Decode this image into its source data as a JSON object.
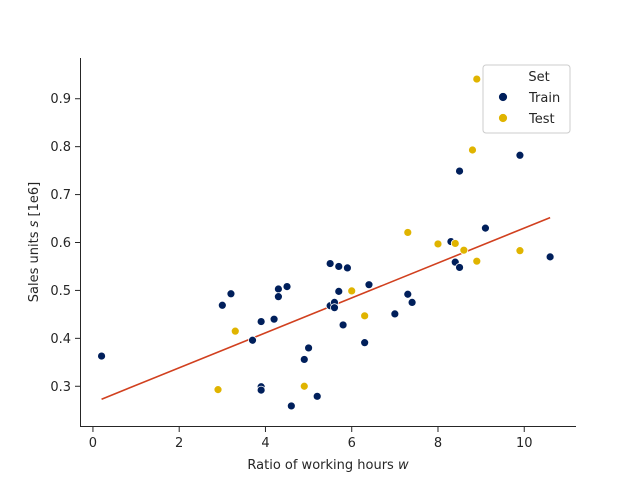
{
  "chart_data": {
    "type": "scatter",
    "title": "",
    "xlabel": "Ratio of working hours",
    "xlabel_var": "w",
    "ylabel": "Sales units",
    "ylabel_var": "s",
    "ylabel_suffix": "[1e6]",
    "xlim": [
      -0.3,
      11.2
    ],
    "ylim": [
      0.215,
      0.985
    ],
    "xticks": [
      0,
      2,
      4,
      6,
      8,
      10
    ],
    "yticks": [
      0.3,
      0.4,
      0.5,
      0.6,
      0.7,
      0.8,
      0.9
    ],
    "ytick_labels": [
      "0.3",
      "0.4",
      "0.5",
      "0.6",
      "0.7",
      "0.8",
      "0.9"
    ],
    "grid": false,
    "legend": {
      "title": "Set",
      "placement": "top-right",
      "entries": [
        "Train",
        "Test"
      ]
    },
    "series": [
      {
        "name": "Train",
        "color": "#001f5b",
        "points": [
          [
            0.2,
            0.363
          ],
          [
            3.0,
            0.469
          ],
          [
            3.2,
            0.493
          ],
          [
            3.7,
            0.396
          ],
          [
            3.9,
            0.435
          ],
          [
            3.9,
            0.299
          ],
          [
            3.9,
            0.292
          ],
          [
            4.2,
            0.44
          ],
          [
            4.3,
            0.503
          ],
          [
            4.3,
            0.487
          ],
          [
            4.5,
            0.508
          ],
          [
            4.6,
            0.259
          ],
          [
            4.9,
            0.356
          ],
          [
            5.0,
            0.38
          ],
          [
            5.2,
            0.279
          ],
          [
            5.5,
            0.556
          ],
          [
            5.5,
            0.468
          ],
          [
            5.6,
            0.475
          ],
          [
            5.6,
            0.464
          ],
          [
            5.7,
            0.55
          ],
          [
            5.7,
            0.498
          ],
          [
            5.8,
            0.428
          ],
          [
            5.9,
            0.547
          ],
          [
            6.3,
            0.391
          ],
          [
            6.4,
            0.512
          ],
          [
            7.0,
            0.451
          ],
          [
            7.3,
            0.492
          ],
          [
            7.4,
            0.475
          ],
          [
            8.3,
            0.602
          ],
          [
            8.4,
            0.559
          ],
          [
            8.5,
            0.548
          ],
          [
            8.5,
            0.749
          ],
          [
            9.1,
            0.63
          ],
          [
            9.9,
            0.782
          ],
          [
            10.6,
            0.57
          ]
        ]
      },
      {
        "name": "Test",
        "color": "#e0b400",
        "points": [
          [
            2.9,
            0.293
          ],
          [
            3.3,
            0.415
          ],
          [
            4.9,
            0.3
          ],
          [
            6.0,
            0.499
          ],
          [
            6.3,
            0.447
          ],
          [
            7.3,
            0.621
          ],
          [
            8.0,
            0.597
          ],
          [
            8.4,
            0.598
          ],
          [
            8.6,
            0.584
          ],
          [
            8.8,
            0.793
          ],
          [
            8.9,
            0.941
          ],
          [
            8.9,
            0.561
          ],
          [
            9.9,
            0.583
          ]
        ]
      }
    ],
    "fit_line": {
      "color": "#d1401f",
      "x": [
        0.2,
        10.6
      ],
      "y": [
        0.273,
        0.652
      ]
    }
  }
}
